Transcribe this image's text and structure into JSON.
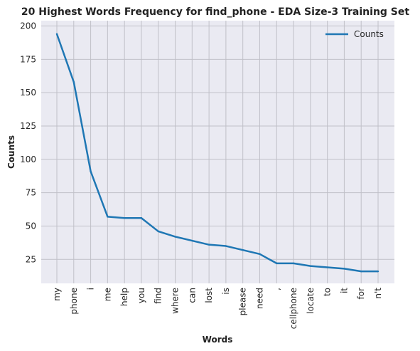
{
  "chart_data": {
    "type": "line",
    "title": "20 Highest Words Frequency for find_phone - EDA Size-3 Training Set",
    "xlabel": "Words",
    "ylabel": "Counts",
    "categories": [
      "my",
      "phone",
      "i",
      "me",
      "help",
      "you",
      "find",
      "where",
      "can",
      "lost",
      "is",
      "please",
      "need",
      ",",
      "cellphone",
      "locate",
      "to",
      "it",
      "for",
      "n't"
    ],
    "series": [
      {
        "name": "Counts",
        "values": [
          194,
          158,
          91,
          57,
          56,
          56,
          46,
          42,
          39,
          36,
          35,
          32,
          29,
          22,
          22,
          20,
          19,
          18,
          16,
          16
        ]
      }
    ],
    "yticks": [
      25,
      50,
      75,
      100,
      125,
      150,
      175,
      200
    ],
    "ylim": [
      7,
      204
    ],
    "grid": true,
    "legend_position": "top-right",
    "colors": {
      "line": "#1f77b4",
      "plot_background": "#eaeaf2",
      "grid": "#c0c0c8"
    }
  }
}
